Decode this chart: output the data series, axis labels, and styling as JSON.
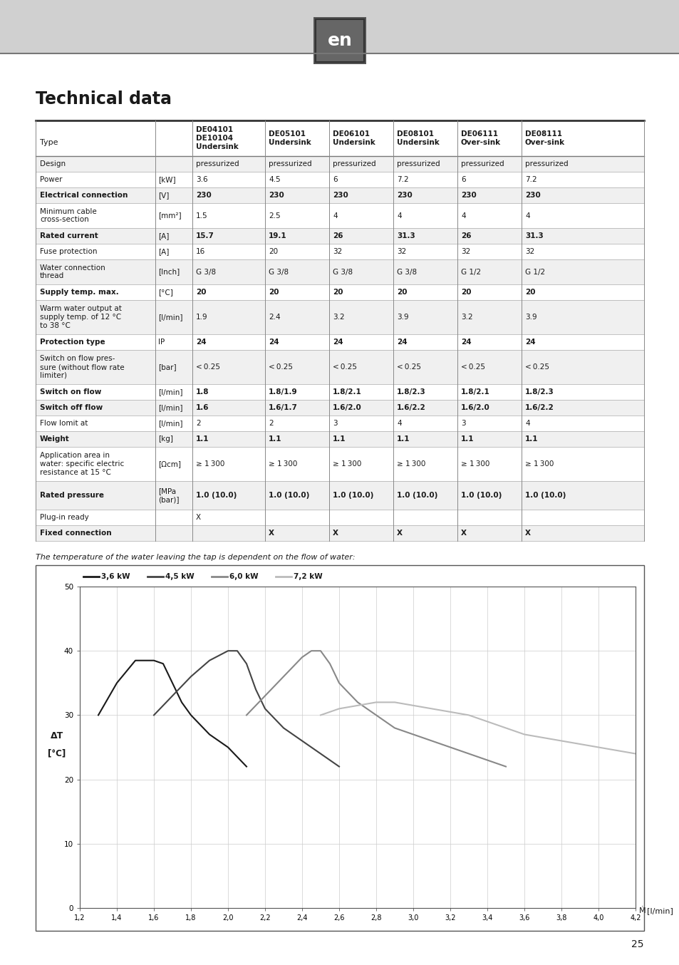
{
  "title": "Technical data",
  "page_number": "25",
  "lang_code": "en",
  "subtitle": "The temperature of the water leaving the tap is dependent on the flow of water:",
  "header_texts": [
    "DE04101\nDE10104\nUndersink",
    "DE05101\nUndersink",
    "DE06101\nUndersink",
    "DE08101\nUndersink",
    "DE06111\nOver-sink",
    "DE08111\nOver-sink"
  ],
  "table_rows": [
    {
      "label": "Design",
      "unit": "",
      "bold": false,
      "shaded": true,
      "values": [
        "pressurized",
        "pressurized",
        "pressurized",
        "pressurized",
        "pressurized",
        "pressurized"
      ]
    },
    {
      "label": "Power",
      "unit": "[kW]",
      "bold": false,
      "shaded": false,
      "values": [
        "3.6",
        "4.5",
        "6",
        "7.2",
        "6",
        "7.2"
      ]
    },
    {
      "label": "Electrical connection",
      "unit": "[V]",
      "bold": true,
      "shaded": true,
      "values": [
        "230",
        "230",
        "230",
        "230",
        "230",
        "230"
      ]
    },
    {
      "label": "Minimum cable\ncross-section",
      "unit": "[mm²]",
      "bold": false,
      "shaded": false,
      "values": [
        "1.5",
        "2.5",
        "4",
        "4",
        "4",
        "4"
      ]
    },
    {
      "label": "Rated current",
      "unit": "[A]",
      "bold": true,
      "shaded": true,
      "values": [
        "15.7",
        "19.1",
        "26",
        "31.3",
        "26",
        "31.3"
      ]
    },
    {
      "label": "Fuse protection",
      "unit": "[A]",
      "bold": false,
      "shaded": false,
      "values": [
        "16",
        "20",
        "32",
        "32",
        "32",
        "32"
      ]
    },
    {
      "label": "Water connection\nthread",
      "unit": "[Inch]",
      "bold": false,
      "shaded": true,
      "values": [
        "G 3/8",
        "G 3/8",
        "G 3/8",
        "G 3/8",
        "G 1/2",
        "G 1/2"
      ]
    },
    {
      "label": "Supply temp. max.",
      "unit": "[°C]",
      "bold": true,
      "shaded": false,
      "values": [
        "20",
        "20",
        "20",
        "20",
        "20",
        "20"
      ]
    },
    {
      "label": "Warm water output at\nsupply temp. of 12 °C\nto 38 °C",
      "unit": "[l/min]",
      "bold": false,
      "shaded": true,
      "values": [
        "1.9",
        "2.4",
        "3.2",
        "3.9",
        "3.2",
        "3.9"
      ]
    },
    {
      "label": "Protection type",
      "unit": "IP",
      "bold": true,
      "shaded": false,
      "values": [
        "24",
        "24",
        "24",
        "24",
        "24",
        "24"
      ]
    },
    {
      "label": "Switch on flow pres-\nsure (without flow rate\nlimiter)",
      "unit": "[bar]",
      "bold": false,
      "shaded": true,
      "values": [
        "< 0.25",
        "< 0.25",
        "< 0.25",
        "< 0.25",
        "< 0.25",
        "< 0.25"
      ]
    },
    {
      "label": "Switch on flow",
      "unit": "[l/min]",
      "bold": true,
      "shaded": false,
      "values": [
        "1.8",
        "1.8/1.9",
        "1.8/2.1",
        "1.8/2.3",
        "1.8/2.1",
        "1.8/2.3"
      ]
    },
    {
      "label": "Switch off flow",
      "unit": "[l/min]",
      "bold": true,
      "shaded": true,
      "values": [
        "1.6",
        "1.6/1.7",
        "1.6/2.0",
        "1.6/2.2",
        "1.6/2.0",
        "1.6/2.2"
      ]
    },
    {
      "label": "Flow lomit at",
      "unit": "[l/min]",
      "bold": false,
      "shaded": false,
      "values": [
        "2",
        "2",
        "3",
        "4",
        "3",
        "4"
      ]
    },
    {
      "label": "Weight",
      "unit": "[kg]",
      "bold": true,
      "shaded": true,
      "values": [
        "1.1",
        "1.1",
        "1.1",
        "1.1",
        "1.1",
        "1.1"
      ]
    },
    {
      "label": "Application area in\nwater: specific electric\nresistance at 15 °C",
      "unit": "[Ωcm]",
      "bold": false,
      "shaded": false,
      "values": [
        "≥ 1 300",
        "≥ 1 300",
        "≥ 1 300",
        "≥ 1 300",
        "≥ 1 300",
        "≥ 1 300"
      ]
    },
    {
      "label": "Rated pressure",
      "unit": "[MPa\n(bar)]",
      "bold": true,
      "shaded": true,
      "values": [
        "1.0 (10.0)",
        "1.0 (10.0)",
        "1.0 (10.0)",
        "1.0 (10.0)",
        "1.0 (10.0)",
        "1.0 (10.0)"
      ]
    },
    {
      "label": "Plug-in ready",
      "unit": "",
      "bold": false,
      "shaded": false,
      "values": [
        "X",
        "",
        "",
        "",
        "",
        ""
      ]
    },
    {
      "label": "Fixed connection",
      "unit": "",
      "bold": true,
      "shaded": true,
      "values": [
        "",
        "X",
        "X",
        "X",
        "X",
        "X"
      ]
    }
  ],
  "chart": {
    "xlim": [
      1.2,
      4.2
    ],
    "ylim": [
      0,
      50
    ],
    "xticks": [
      1.2,
      1.4,
      1.6,
      1.8,
      2.0,
      2.2,
      2.4,
      2.6,
      2.8,
      3.0,
      3.2,
      3.4,
      3.6,
      3.8,
      4.0,
      4.2
    ],
    "yticks": [
      0,
      10,
      20,
      30,
      40,
      50
    ],
    "series": [
      {
        "label": "3,6 kW",
        "color": "#1a1a1a",
        "x": [
          1.3,
          1.4,
          1.5,
          1.6,
          1.65,
          1.7,
          1.75,
          1.8,
          1.9,
          2.0,
          2.1
        ],
        "y": [
          30,
          35,
          38.5,
          38.5,
          38,
          35,
          32,
          30,
          27,
          25,
          22
        ]
      },
      {
        "label": "4,5 kW",
        "color": "#444444",
        "x": [
          1.6,
          1.7,
          1.8,
          1.9,
          2.0,
          2.05,
          2.1,
          2.15,
          2.2,
          2.3,
          2.4,
          2.5,
          2.6
        ],
        "y": [
          30,
          33,
          36,
          38.5,
          40,
          40,
          38,
          34,
          31,
          28,
          26,
          24,
          22
        ]
      },
      {
        "label": "6,0 kW",
        "color": "#888888",
        "x": [
          2.1,
          2.2,
          2.3,
          2.4,
          2.45,
          2.5,
          2.55,
          2.6,
          2.7,
          2.8,
          2.9,
          3.0,
          3.1,
          3.2,
          3.3,
          3.5
        ],
        "y": [
          30,
          33,
          36,
          39,
          40,
          40,
          38,
          35,
          32,
          30,
          28,
          27,
          26,
          25,
          24,
          22
        ]
      },
      {
        "label": "7,2 kW",
        "color": "#bbbbbb",
        "x": [
          2.5,
          2.6,
          2.7,
          2.8,
          2.9,
          3.0,
          3.1,
          3.2,
          3.3,
          3.4,
          3.5,
          3.6,
          3.7,
          3.8,
          3.9,
          4.0,
          4.1,
          4.2
        ],
        "y": [
          30,
          31,
          31.5,
          32,
          32,
          31.5,
          31,
          30.5,
          30,
          29,
          28,
          27,
          26.5,
          26,
          25.5,
          25,
          24.5,
          24
        ]
      }
    ]
  },
  "bg_color": "#ffffff",
  "shaded_row_bg": "#f0f0f0",
  "text_color": "#1a1a1a",
  "top_bar_color": "#d0d0d0"
}
